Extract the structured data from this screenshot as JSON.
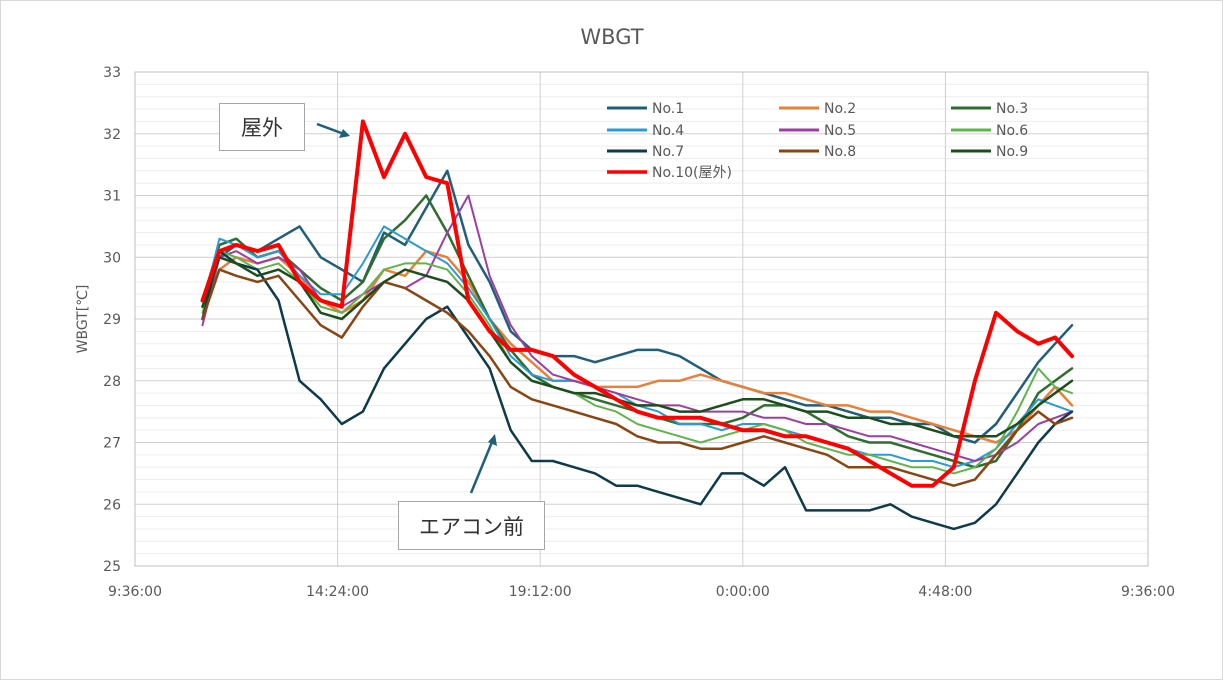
{
  "chart_data": {
    "type": "line",
    "title": "WBGT",
    "ylabel": "WBGT[℃]",
    "ylim": [
      25,
      33
    ],
    "yticks": [
      25,
      26,
      27,
      28,
      29,
      30,
      31,
      32,
      33
    ],
    "xlim_hours": [
      9.6,
      33.6
    ],
    "xticks": [
      {
        "h": 9.6,
        "label": "9:36:00"
      },
      {
        "h": 14.4,
        "label": "14:24:00"
      },
      {
        "h": 19.2,
        "label": "19:12:00"
      },
      {
        "h": 24.0,
        "label": "0:00:00"
      },
      {
        "h": 28.8,
        "label": "4:48:00"
      },
      {
        "h": 33.6,
        "label": "9:36:00"
      }
    ],
    "grid": true,
    "legend_position": "top-right-inside",
    "x": [
      11.2,
      11.6,
      12.0,
      12.5,
      13.0,
      13.5,
      14.0,
      14.5,
      15.0,
      15.5,
      16.0,
      16.5,
      17.0,
      17.5,
      18.0,
      18.5,
      19.0,
      19.5,
      20.0,
      20.5,
      21.0,
      21.5,
      22.0,
      22.5,
      23.0,
      23.5,
      24.0,
      24.5,
      25.0,
      25.5,
      26.0,
      26.5,
      27.0,
      27.5,
      28.0,
      28.5,
      29.0,
      29.5,
      30.0,
      30.5,
      31.0,
      31.4,
      31.8
    ],
    "series": [
      {
        "name": "No.1",
        "color": "#1f5f7a",
        "width": 2.5,
        "values": [
          29.0,
          30.0,
          30.2,
          30.1,
          30.3,
          30.5,
          30.0,
          29.8,
          29.6,
          30.4,
          30.2,
          30.8,
          31.4,
          30.2,
          29.6,
          28.8,
          28.5,
          28.4,
          28.4,
          28.3,
          28.4,
          28.5,
          28.5,
          28.4,
          28.2,
          28.0,
          27.9,
          27.8,
          27.7,
          27.6,
          27.6,
          27.5,
          27.4,
          27.4,
          27.3,
          27.3,
          27.1,
          27.0,
          27.3,
          27.8,
          28.3,
          28.6,
          28.9
        ]
      },
      {
        "name": "No.2",
        "color": "#e8803a",
        "width": 2.5,
        "values": [
          29.2,
          29.8,
          30.0,
          29.9,
          30.0,
          29.7,
          29.3,
          29.1,
          29.3,
          29.8,
          29.7,
          30.1,
          30.0,
          29.6,
          29.0,
          28.6,
          28.3,
          28.0,
          28.0,
          27.9,
          27.9,
          27.9,
          28.0,
          28.0,
          28.1,
          28.0,
          27.9,
          27.8,
          27.8,
          27.7,
          27.6,
          27.6,
          27.5,
          27.5,
          27.4,
          27.3,
          27.2,
          27.1,
          27.0,
          27.2,
          27.6,
          27.9,
          27.6
        ]
      },
      {
        "name": "No.3",
        "color": "#2f6e2f",
        "width": 2.5,
        "values": [
          29.3,
          30.2,
          30.3,
          30.0,
          30.1,
          29.8,
          29.5,
          29.3,
          29.6,
          30.3,
          30.6,
          31.0,
          30.4,
          29.7,
          29.0,
          28.5,
          28.1,
          27.9,
          27.8,
          27.7,
          27.6,
          27.5,
          27.4,
          27.3,
          27.3,
          27.3,
          27.4,
          27.6,
          27.6,
          27.5,
          27.3,
          27.1,
          27.0,
          27.0,
          26.9,
          26.8,
          26.7,
          26.6,
          26.7,
          27.2,
          27.8,
          28.0,
          28.2
        ]
      },
      {
        "name": "No.4",
        "color": "#2b9bd4",
        "width": 2.0,
        "values": [
          29.2,
          30.3,
          30.2,
          30.0,
          30.1,
          29.7,
          29.4,
          29.4,
          29.9,
          30.5,
          30.3,
          30.1,
          29.9,
          29.5,
          29.0,
          28.4,
          28.1,
          28.0,
          28.0,
          27.9,
          27.8,
          27.6,
          27.5,
          27.3,
          27.3,
          27.2,
          27.3,
          27.3,
          27.2,
          27.1,
          27.0,
          26.9,
          26.8,
          26.8,
          26.7,
          26.7,
          26.6,
          26.7,
          26.9,
          27.3,
          27.7,
          27.6,
          27.5
        ]
      },
      {
        "name": "No.5",
        "color": "#9c3ea3",
        "width": 2.0,
        "values": [
          28.9,
          30.0,
          30.1,
          29.9,
          30.0,
          29.8,
          29.3,
          29.2,
          29.4,
          29.6,
          29.5,
          29.7,
          30.4,
          31.0,
          29.7,
          28.9,
          28.4,
          28.1,
          28.0,
          27.9,
          27.8,
          27.7,
          27.6,
          27.6,
          27.5,
          27.5,
          27.5,
          27.4,
          27.4,
          27.3,
          27.3,
          27.2,
          27.1,
          27.1,
          27.0,
          26.9,
          26.8,
          26.7,
          26.8,
          27.0,
          27.3,
          27.4,
          27.5
        ]
      },
      {
        "name": "No.6",
        "color": "#5fb54a",
        "width": 2.0,
        "values": [
          29.1,
          30.1,
          30.0,
          29.8,
          29.9,
          29.6,
          29.2,
          29.1,
          29.4,
          29.8,
          29.9,
          29.9,
          29.8,
          29.4,
          28.9,
          28.3,
          28.0,
          27.9,
          27.8,
          27.6,
          27.5,
          27.3,
          27.2,
          27.1,
          27.0,
          27.1,
          27.2,
          27.3,
          27.2,
          27.0,
          26.9,
          26.8,
          26.8,
          26.7,
          26.6,
          26.6,
          26.5,
          26.6,
          26.9,
          27.5,
          28.2,
          27.9,
          27.8
        ]
      },
      {
        "name": "No.7",
        "color": "#0e3a4a",
        "width": 2.5,
        "values": [
          29.0,
          30.1,
          29.9,
          29.8,
          29.3,
          28.0,
          27.7,
          27.3,
          27.5,
          28.2,
          28.6,
          29.0,
          29.2,
          28.7,
          28.2,
          27.2,
          26.7,
          26.7,
          26.6,
          26.5,
          26.3,
          26.3,
          26.2,
          26.1,
          26.0,
          26.5,
          26.5,
          26.3,
          26.6,
          25.9,
          25.9,
          25.9,
          25.9,
          26.0,
          25.8,
          25.7,
          25.6,
          25.7,
          26.0,
          26.5,
          27.0,
          27.3,
          27.5
        ]
      },
      {
        "name": "No.8",
        "color": "#8b4513",
        "width": 2.5,
        "values": [
          29.0,
          29.8,
          29.7,
          29.6,
          29.7,
          29.3,
          28.9,
          28.7,
          29.2,
          29.6,
          29.5,
          29.3,
          29.1,
          28.8,
          28.4,
          27.9,
          27.7,
          27.6,
          27.5,
          27.4,
          27.3,
          27.1,
          27.0,
          27.0,
          26.9,
          26.9,
          27.0,
          27.1,
          27.0,
          26.9,
          26.8,
          26.6,
          26.6,
          26.6,
          26.5,
          26.4,
          26.3,
          26.4,
          26.8,
          27.2,
          27.5,
          27.3,
          27.4
        ]
      },
      {
        "name": "No.9",
        "color": "#1c4d1c",
        "width": 2.5,
        "values": [
          29.2,
          30.0,
          29.9,
          29.7,
          29.8,
          29.6,
          29.1,
          29.0,
          29.3,
          29.6,
          29.8,
          29.7,
          29.6,
          29.3,
          28.8,
          28.3,
          28.0,
          27.9,
          27.8,
          27.8,
          27.7,
          27.6,
          27.6,
          27.5,
          27.5,
          27.6,
          27.7,
          27.7,
          27.6,
          27.5,
          27.5,
          27.4,
          27.4,
          27.3,
          27.3,
          27.2,
          27.1,
          27.1,
          27.1,
          27.3,
          27.6,
          27.8,
          28.0
        ]
      },
      {
        "name": "No.10(屋外)",
        "color": "#ff0000",
        "width": 4.0,
        "values": [
          29.3,
          30.1,
          30.2,
          30.1,
          30.2,
          29.6,
          29.3,
          29.2,
          32.2,
          31.3,
          32.0,
          31.3,
          31.2,
          29.3,
          28.8,
          28.5,
          28.5,
          28.4,
          28.1,
          27.9,
          27.7,
          27.5,
          27.4,
          27.4,
          27.4,
          27.3,
          27.2,
          27.2,
          27.1,
          27.1,
          27.0,
          26.9,
          26.7,
          26.5,
          26.3,
          26.3,
          26.6,
          28.0,
          29.1,
          28.8,
          28.6,
          28.7,
          28.4
        ]
      }
    ]
  },
  "annotations": {
    "outdoor_label": "屋外",
    "ac_front_label": "エアコン前"
  }
}
